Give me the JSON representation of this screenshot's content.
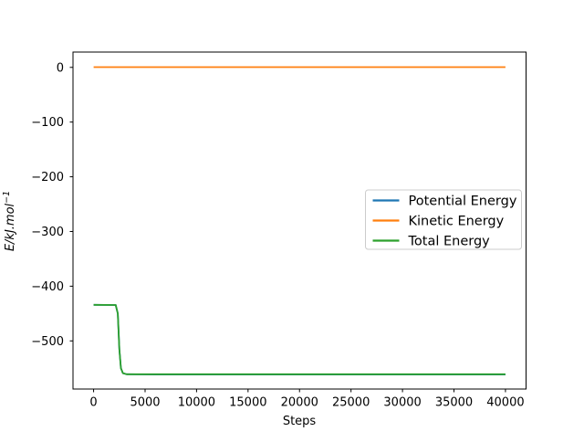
{
  "chart_data": {
    "type": "line",
    "title": "",
    "xlabel": "Steps",
    "ylabel": "E/kJ.mol⁻¹",
    "ylabel_base": "E/kJ.mol",
    "ylabel_superscript": "−1",
    "xlim": [
      -2000,
      42000
    ],
    "ylim": [
      -588,
      28
    ],
    "xticks": [
      0,
      5000,
      10000,
      15000,
      20000,
      25000,
      30000,
      35000,
      40000
    ],
    "xtick_labels": [
      "0",
      "5000",
      "10000",
      "15000",
      "20000",
      "25000",
      "30000",
      "35000",
      "40000"
    ],
    "yticks": [
      0,
      -100,
      -200,
      -300,
      -400,
      -500
    ],
    "ytick_labels": [
      "0",
      "−100",
      "−200",
      "−300",
      "−400",
      "−500"
    ],
    "grid": false,
    "background": "#ffffff",
    "legend": {
      "position": "center right",
      "background": "#ffffff",
      "border_color": "#cccccc",
      "entries": [
        "Potential Energy",
        "Kinetic Energy",
        "Total Energy"
      ]
    },
    "series": [
      {
        "name": "Potential Energy",
        "color": "#1f77b4",
        "points": [
          [
            0,
            -434
          ],
          [
            2150,
            -434.5
          ],
          [
            2350,
            -450
          ],
          [
            2500,
            -515
          ],
          [
            2650,
            -550
          ],
          [
            2850,
            -559
          ],
          [
            3200,
            -561
          ],
          [
            6000,
            -561.5
          ],
          [
            40000,
            -561.5
          ]
        ]
      },
      {
        "name": "Kinetic Energy",
        "color": "#ff7f0e",
        "points": [
          [
            0,
            0.5
          ],
          [
            40000,
            0.5
          ]
        ]
      },
      {
        "name": "Total Energy",
        "color": "#2ca02c",
        "points": [
          [
            0,
            -434
          ],
          [
            2150,
            -434.5
          ],
          [
            2350,
            -450
          ],
          [
            2500,
            -515
          ],
          [
            2650,
            -550
          ],
          [
            2850,
            -559
          ],
          [
            3200,
            -561
          ],
          [
            6000,
            -561
          ],
          [
            40000,
            -561
          ]
        ]
      }
    ]
  }
}
